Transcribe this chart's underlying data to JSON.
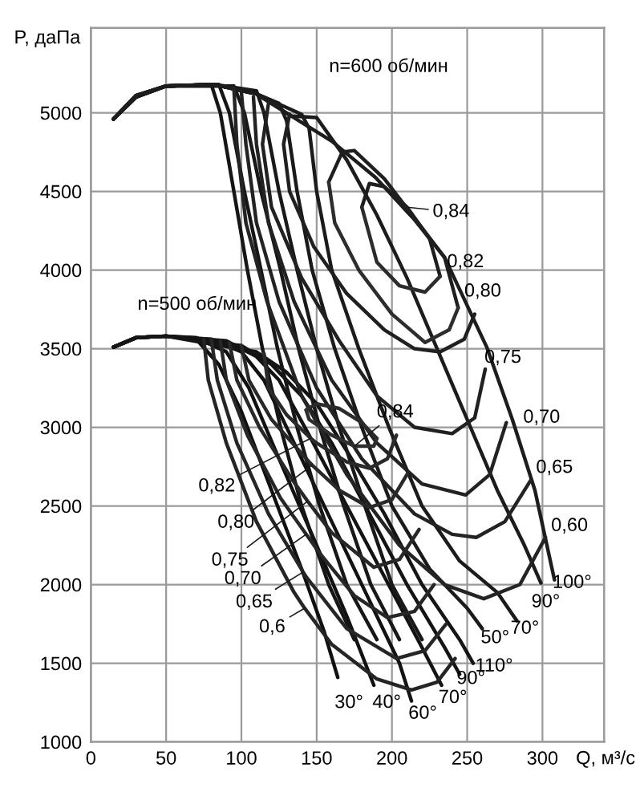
{
  "chart_data": {
    "type": "line",
    "xlabel": "Q, м³/с",
    "ylabel": "P, даПа",
    "xlim": [
      0,
      341
    ],
    "ylim": [
      1000,
      5540
    ],
    "xticks": [
      0,
      50,
      100,
      150,
      200,
      250,
      300
    ],
    "yticks": [
      1000,
      1500,
      2000,
      2500,
      3000,
      3500,
      4000,
      4500,
      5000
    ],
    "grid": true,
    "marker": "none",
    "line_style": "solid",
    "series": [
      {
        "color": "#101010",
        "x": [
          15,
          30,
          50,
          70,
          85,
          100,
          120,
          140,
          155,
          164
        ],
        "values": [
          3510,
          3570,
          3580,
          3560,
          3400,
          3100,
          2600,
          2100,
          1700,
          1410
        ]
      },
      {
        "color": "#111111",
        "x": [
          15,
          30,
          50,
          70,
          90,
          105,
          125,
          150,
          170,
          188
        ],
        "values": [
          3510,
          3570,
          3580,
          3570,
          3480,
          3250,
          2800,
          2250,
          1800,
          1360
        ]
      },
      {
        "color": "#121212",
        "x": [
          15,
          30,
          50,
          80,
          100,
          115,
          135,
          160,
          185,
          205,
          213
        ],
        "values": [
          3510,
          3570,
          3580,
          3560,
          3480,
          3300,
          2900,
          2400,
          1900,
          1500,
          1260
        ]
      },
      {
        "color": "#131313",
        "x": [
          15,
          30,
          50,
          90,
          110,
          125,
          145,
          170,
          195,
          220,
          233
        ],
        "values": [
          3510,
          3570,
          3580,
          3550,
          3450,
          3300,
          2950,
          2500,
          2050,
          1600,
          1360
        ]
      },
      {
        "color": "#141414",
        "x": [
          15,
          30,
          50,
          100,
          120,
          140,
          160,
          185,
          210,
          235,
          245
        ],
        "values": [
          3510,
          3570,
          3580,
          3520,
          3400,
          3200,
          2900,
          2450,
          2000,
          1600,
          1430
        ]
      },
      {
        "color": "#151515",
        "x": [
          15,
          30,
          50,
          110,
          130,
          150,
          170,
          195,
          220,
          245,
          254
        ],
        "values": [
          3510,
          3570,
          3580,
          3480,
          3350,
          3150,
          2850,
          2450,
          2000,
          1650,
          1500
        ]
      },
      {
        "color": "#161616",
        "x": [
          15,
          30,
          50,
          80,
          86,
          95,
          104,
          114,
          126,
          140,
          158,
          175
        ],
        "values": [
          4960,
          5100,
          5170,
          5180,
          5000,
          4500,
          4000,
          3500,
          3000,
          2500,
          2000,
          1650
        ]
      },
      {
        "color": "#171717",
        "x": [
          15,
          30,
          50,
          85,
          92,
          102,
          113,
          124,
          137,
          152,
          170,
          190
        ],
        "values": [
          4960,
          5100,
          5170,
          5180,
          5000,
          4500,
          4000,
          3500,
          3000,
          2500,
          2000,
          1650
        ]
      },
      {
        "color": "#181818",
        "x": [
          15,
          30,
          50,
          95,
          102,
          113,
          126,
          138,
          152,
          168,
          186,
          205
        ],
        "values": [
          4960,
          5100,
          5170,
          5170,
          5000,
          4500,
          4000,
          3500,
          3000,
          2500,
          2000,
          1650
        ]
      },
      {
        "color": "#191919",
        "x": [
          15,
          30,
          50,
          82,
          110,
          115,
          125,
          137,
          150,
          165,
          182,
          200,
          220
        ],
        "values": [
          4960,
          5100,
          5170,
          5180,
          5140,
          5000,
          4500,
          4000,
          3500,
          3000,
          2500,
          2000,
          1650
        ]
      },
      {
        "color": "#1a1a1a",
        "x": [
          15,
          30,
          50,
          82,
          110,
          125,
          130,
          137,
          147,
          162,
          180,
          200,
          225,
          250,
          260
        ],
        "values": [
          4960,
          5110,
          5170,
          5180,
          5120,
          5060,
          4950,
          4500,
          4000,
          3500,
          3000,
          2500,
          2100,
          1850,
          1720
        ]
      },
      {
        "color": "#1b1b1b",
        "x": [
          15,
          30,
          50,
          82,
          110,
          140,
          145,
          150,
          160,
          178,
          198,
          220,
          245,
          270,
          283
        ],
        "values": [
          4960,
          5110,
          5170,
          5180,
          5120,
          4990,
          4900,
          4500,
          4000,
          3500,
          3000,
          2500,
          2150,
          1950,
          1770
        ]
      },
      {
        "color": "#1c1c1c",
        "x": [
          15,
          30,
          50,
          82,
          110,
          133,
          150,
          170,
          190,
          210,
          230,
          250,
          270,
          288,
          299
        ],
        "values": [
          4960,
          5110,
          5170,
          5180,
          5120,
          4980,
          4970,
          4700,
          4350,
          3950,
          3500,
          3050,
          2600,
          2250,
          2010
        ]
      },
      {
        "color": "#1d1d1d",
        "x": [
          15,
          30,
          50,
          82,
          110,
          133,
          160,
          189,
          215,
          235,
          263,
          280,
          295,
          308
        ],
        "values": [
          4960,
          5110,
          5170,
          5180,
          5120,
          4980,
          4820,
          4590,
          4320,
          4080,
          3510,
          3050,
          2600,
          2030
        ]
      },
      {
        "color": "#1e1e1e",
        "x": [
          180,
          185,
          195,
          210,
          225,
          232
        ],
        "values": [
          4400,
          4550,
          4530,
          4400,
          4200,
          3960
        ]
      },
      {
        "color": "#2c2c2c",
        "x": [
          180,
          190,
          205,
          222,
          232
        ],
        "values": [
          4400,
          4050,
          3900,
          3860,
          3960
        ]
      },
      {
        "color": "#1f1f1f",
        "x": [
          158,
          167,
          175,
          195,
          215,
          235,
          244
        ],
        "values": [
          4560,
          4750,
          4760,
          4580,
          4330,
          4080,
          3760
        ]
      },
      {
        "color": "#2d2d2d",
        "x": [
          158,
          162,
          178,
          200,
          222,
          238,
          244
        ],
        "values": [
          4560,
          4300,
          4000,
          3720,
          3540,
          3620,
          3760
        ]
      },
      {
        "color": "#202020",
        "x": [
          132,
          128,
          132,
          148,
          170,
          195,
          215,
          232,
          248,
          255
        ],
        "values": [
          4990,
          4800,
          4500,
          4150,
          3850,
          3620,
          3500,
          3480,
          3560,
          3720
        ]
      },
      {
        "color": "#212121",
        "x": [
          118,
          114,
          120,
          140,
          165,
          190,
          215,
          240,
          255,
          262
        ],
        "values": [
          5060,
          4800,
          4400,
          3950,
          3550,
          3200,
          3000,
          2960,
          3060,
          3370
        ]
      },
      {
        "color": "#222222",
        "x": [
          108,
          110,
          118,
          135,
          160,
          190,
          220,
          249,
          265,
          276
        ],
        "values": [
          5100,
          4800,
          4300,
          3800,
          3300,
          2900,
          2640,
          2570,
          2700,
          3030
        ]
      },
      {
        "color": "#232323",
        "x": [
          100,
          103,
          110,
          125,
          150,
          180,
          215,
          240,
          256,
          275,
          292
        ],
        "values": [
          5130,
          4800,
          4300,
          3800,
          3250,
          2800,
          2450,
          2320,
          2300,
          2400,
          2660
        ]
      },
      {
        "color": "#242424",
        "x": [
          95,
          97,
          103,
          117,
          140,
          170,
          205,
          235,
          261,
          285,
          302
        ],
        "values": [
          5160,
          4800,
          4300,
          3800,
          3200,
          2700,
          2250,
          2000,
          1910,
          2000,
          2300
        ]
      },
      {
        "color": "#252525",
        "x": [
          75,
          78,
          90,
          110,
          135,
          142,
          160,
          190,
          213,
          230,
          242
        ],
        "values": [
          3560,
          3300,
          2900,
          2400,
          1950,
          1850,
          1620,
          1400,
          1330,
          1380,
          1530
        ]
      },
      {
        "color": "#262626",
        "x": [
          80,
          84,
          97,
          118,
          141,
          143,
          170,
          203,
          222,
          236
        ],
        "values": [
          3560,
          3300,
          2900,
          2450,
          2080,
          2050,
          1720,
          1530,
          1580,
          1750
        ]
      },
      {
        "color": "#272727",
        "x": [
          86,
          90,
          104,
          126,
          143,
          152,
          175,
          197,
          215,
          228
        ],
        "values": [
          3550,
          3300,
          2950,
          2550,
          2320,
          2200,
          1930,
          1790,
          1830,
          2000
        ]
      },
      {
        "color": "#282828",
        "x": [
          92,
          97,
          112,
          135,
          144,
          160,
          188,
          205,
          218
        ],
        "values": [
          3540,
          3300,
          3000,
          2650,
          2530,
          2330,
          2110,
          2160,
          2350
        ]
      },
      {
        "color": "#292929",
        "x": [
          100,
          105,
          120,
          145,
          147,
          165,
          185,
          200,
          210
        ],
        "values": [
          3520,
          3300,
          3050,
          2780,
          2760,
          2600,
          2490,
          2540,
          2700
        ]
      },
      {
        "color": "#2a2a2a",
        "x": [
          115,
          118,
          130,
          146,
          150,
          170,
          185,
          197,
          203
        ],
        "values": [
          3470,
          3250,
          3080,
          2930,
          2900,
          2780,
          2740,
          2800,
          2950
        ]
      },
      {
        "color": "#2b2b2b",
        "x": [
          143,
          150,
          165,
          180,
          190
        ],
        "values": [
          3110,
          3150,
          3120,
          3030,
          2930
        ]
      },
      {
        "color": "#2e2e2e",
        "x": [
          143,
          145,
          160,
          175,
          188,
          190
        ],
        "values": [
          3110,
          3050,
          2950,
          2880,
          2880,
          2930
        ]
      }
    ],
    "annotations": [
      "n=600 об/мин",
      "n=500 об/мин",
      {
        "text": "0,84",
        "x": 210,
        "y": 4400
      },
      {
        "text": "0,82",
        "x": 235,
        "y": 4080
      },
      {
        "text": "0,80",
        "x": 255,
        "y": 3720
      },
      {
        "text": "0,75",
        "x": 262,
        "y": 3370
      },
      {
        "text": "0,70",
        "x": 276,
        "y": 3030
      },
      {
        "text": "0,65",
        "x": 292,
        "y": 2660
      },
      {
        "text": "0,60",
        "x": 302,
        "y": 2300
      },
      {
        "text": "0,84",
        "x": 175,
        "y": 2880
      },
      {
        "text": "0,82",
        "x": 146,
        "y": 2930
      },
      {
        "text": "0,80",
        "x": 147,
        "y": 2760
      },
      {
        "text": "0,75",
        "x": 144,
        "y": 2530
      },
      {
        "text": "0,70",
        "x": 143,
        "y": 2320
      },
      {
        "text": "0,65",
        "x": 141,
        "y": 2080
      },
      {
        "text": "0,6",
        "x": 142,
        "y": 1850
      },
      {
        "text": "30°",
        "x": 164,
        "y": 1410
      },
      {
        "text": "40°",
        "x": 188,
        "y": 1360
      },
      {
        "text": "60°",
        "x": 213,
        "y": 1260
      },
      {
        "text": "70°",
        "x": 233,
        "y": 1360
      },
      {
        "text": "90°",
        "x": 245,
        "y": 1430
      },
      {
        "text": "110°",
        "x": 254,
        "y": 1500
      },
      {
        "text": "50°",
        "x": 260,
        "y": 1720
      },
      {
        "text": "70°",
        "x": 283,
        "y": 1770
      },
      {
        "text": "90°",
        "x": 299,
        "y": 2010
      },
      {
        "text": "100°",
        "x": 308,
        "y": 2030
      }
    ]
  }
}
